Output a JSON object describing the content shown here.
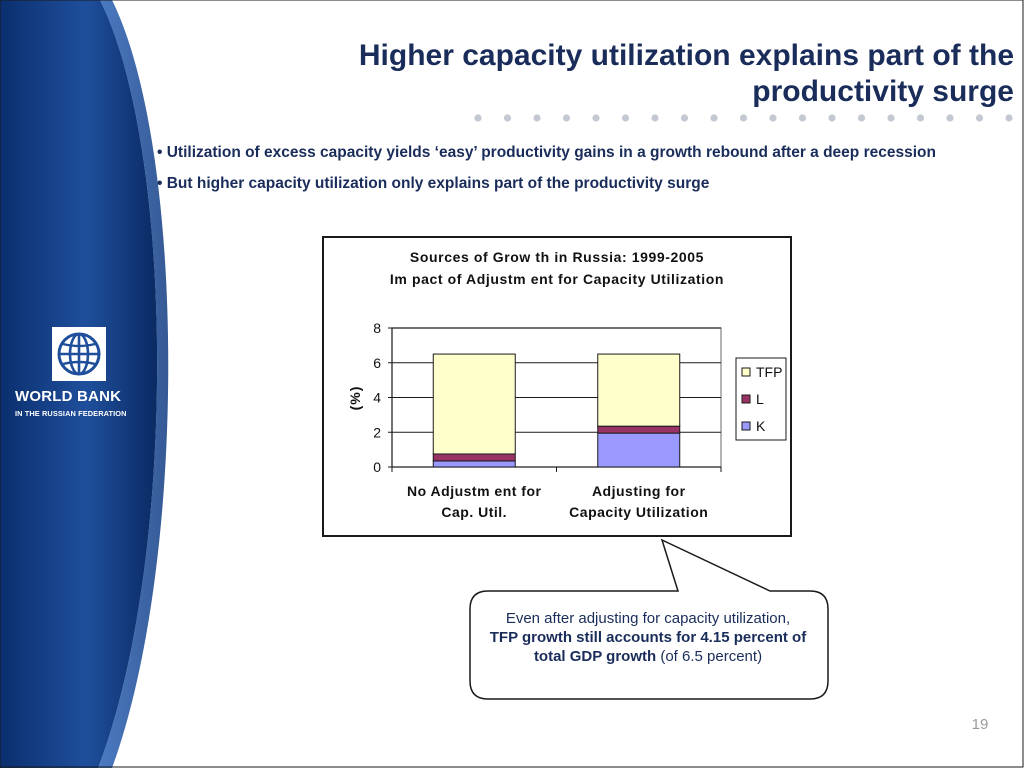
{
  "slide": {
    "title_line1": "Higher capacity utilization explains part of the",
    "title_line2": "productivity surge",
    "bullets": [
      "• Utilization of excess capacity yields ‘easy’ productivity gains in a growth rebound after a deep recession",
      "• But higher capacity utilization only explains part of the productivity surge"
    ],
    "page_number": "19"
  },
  "logo": {
    "name": "WORLD BANK",
    "subtitle": "IN THE RUSSIAN FEDERATION",
    "icon": "globe-icon"
  },
  "callout": {
    "text_plain_1": "Even after adjusting for capacity utilization,",
    "text_bold": "TFP growth still accounts for 4.15 percent of  total GDP growth",
    "text_plain_2": " (of 6.5 percent)"
  },
  "colors": {
    "title_navy": "#1a2d5a",
    "panel_blue": "#1f4f9c",
    "tfp": "#ffffcc",
    "l": "#993366",
    "k": "#9999ff",
    "page_number": "#9a9a9a"
  },
  "chart_data": {
    "type": "bar",
    "stacked": true,
    "title": "Sources of Grow th in Russia: 1999-2005",
    "subtitle": "Im pact of Adjustm ent for Capacity Utilization",
    "ylabel": "(%)",
    "xlabel": "",
    "ylim": [
      0,
      8
    ],
    "yticks": [
      "0",
      "2",
      "4",
      "6",
      "8"
    ],
    "grid": true,
    "legend_position": "right",
    "categories": [
      [
        "No Adjustm ent for",
        "Cap. Util."
      ],
      [
        "Adjusting for",
        "Capacity Utilization"
      ]
    ],
    "series": [
      {
        "name": "K",
        "values": [
          0.35,
          1.95
        ],
        "color": "#9999ff"
      },
      {
        "name": "L",
        "values": [
          0.4,
          0.4
        ],
        "color": "#993366"
      },
      {
        "name": "TFP",
        "values": [
          5.75,
          4.15
        ],
        "color": "#ffffcc"
      }
    ],
    "legend_order": [
      "TFP",
      "L",
      "K"
    ]
  }
}
